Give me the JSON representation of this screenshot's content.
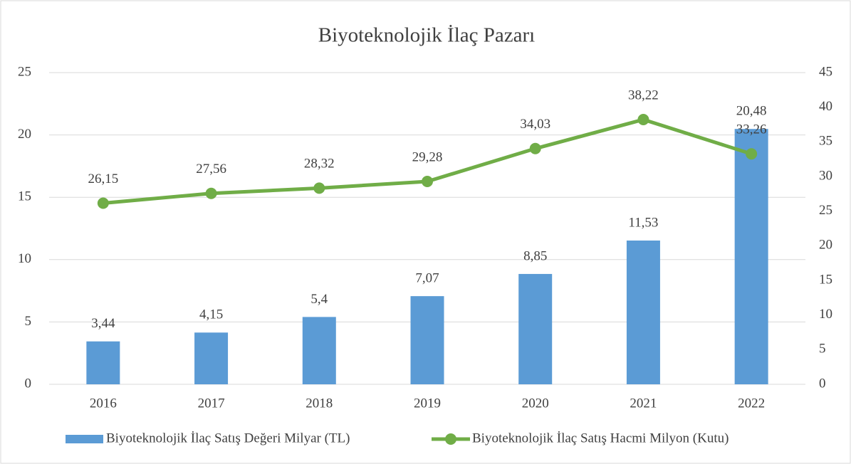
{
  "chart_data": {
    "type": "combo",
    "title": "Biyoteknolojik İlaç Pazarı",
    "categories": [
      "2016",
      "2017",
      "2018",
      "2019",
      "2020",
      "2021",
      "2022"
    ],
    "series": [
      {
        "name": "Biyoteknolojik İlaç Satış Değeri Milyar (TL)",
        "type": "bar",
        "color": "#5b9bd5",
        "values": [
          3.44,
          4.15,
          5.4,
          7.07,
          8.85,
          11.53,
          20.48
        ],
        "value_labels": [
          "3,44",
          "4,15",
          "5,4",
          "7,07",
          "8,85",
          "11,53",
          "20,48"
        ]
      },
      {
        "name": "Biyoteknolojik İlaç Satış Hacmi Milyon (Kutu)",
        "type": "line",
        "axis": "y2",
        "color": "#70ad47",
        "values": [
          26.15,
          27.56,
          28.32,
          29.28,
          34.03,
          38.22,
          33.26
        ],
        "value_labels": [
          "26,15",
          "27,56",
          "28,32",
          "29,28",
          "34,03",
          "38,22",
          "33,26"
        ]
      }
    ],
    "ylim": [
      0,
      25
    ],
    "yticks": [
      0,
      5,
      10,
      15,
      20,
      25
    ],
    "y2lim": [
      0,
      45
    ],
    "y2ticks": [
      0,
      5,
      10,
      15,
      20,
      25,
      30,
      35,
      40,
      45
    ],
    "grid": true,
    "legend": "bottom"
  }
}
